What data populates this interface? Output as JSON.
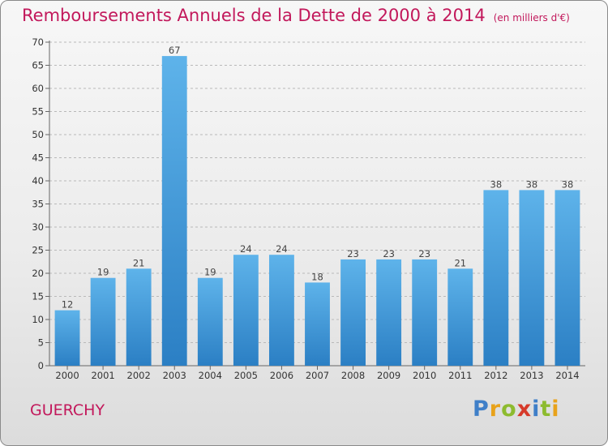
{
  "header": {
    "title": "Remboursements Annuels de la Dette de 2000 à 2014",
    "unit": "(en milliers d'€)"
  },
  "footer": {
    "location": "GUERCHY",
    "brand_letters": [
      {
        "ch": "P",
        "color": "#3f7fc8"
      },
      {
        "ch": "r",
        "color": "#e8a21a"
      },
      {
        "ch": "o",
        "color": "#8dbb2f"
      },
      {
        "ch": "x",
        "color": "#d63a2a"
      },
      {
        "ch": "i",
        "color": "#3f7fc8"
      },
      {
        "ch": "t",
        "color": "#8dbb2f"
      },
      {
        "ch": "i",
        "color": "#e8a21a"
      }
    ]
  },
  "colors": {
    "bar_top": "#5eb3ea",
    "bar_bottom": "#2b7fc4",
    "title": "#c2185b",
    "grid": "#b9b9b9"
  },
  "chart_data": {
    "type": "bar",
    "categories": [
      "2000",
      "2001",
      "2002",
      "2003",
      "2004",
      "2005",
      "2006",
      "2007",
      "2008",
      "2009",
      "2010",
      "2011",
      "2012",
      "2013",
      "2014"
    ],
    "values": [
      12,
      19,
      21,
      67,
      19,
      24,
      24,
      18,
      23,
      23,
      23,
      21,
      38,
      38,
      38
    ],
    "ylim": [
      0,
      70
    ],
    "yticks": [
      0,
      5,
      10,
      15,
      20,
      25,
      30,
      35,
      40,
      45,
      50,
      55,
      60,
      65,
      70
    ],
    "grid": true,
    "grid_style": "dashed"
  }
}
